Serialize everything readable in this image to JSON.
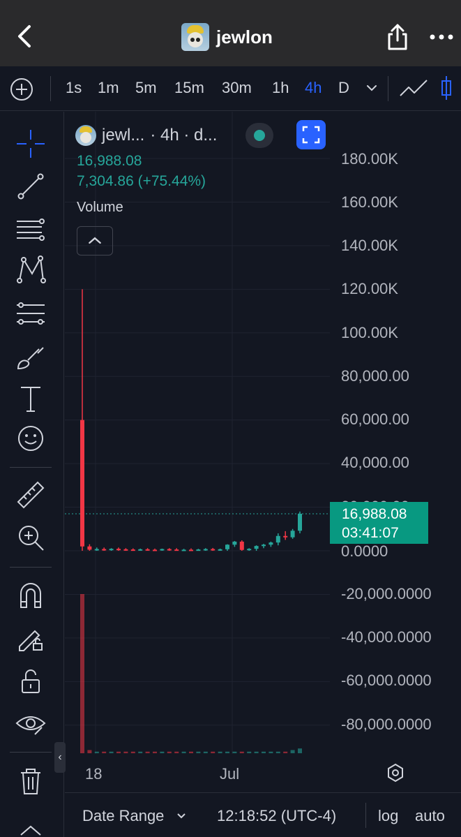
{
  "header": {
    "title": "jewlon",
    "back_icon": "chevron-left-icon",
    "share_icon": "share-icon",
    "more_icon": "more-horizontal-icon"
  },
  "toolbar": {
    "timeframes": [
      "1s",
      "1m",
      "5m",
      "15m",
      "30m",
      "1h",
      "4h",
      "D"
    ],
    "active_timeframe": "4h"
  },
  "legend": {
    "symbol": "jewl...",
    "interval_text": "· 4h · d...",
    "last_price": "16,988.08",
    "change": "7,304.86 (+75.44%)",
    "volume_label": "Volume"
  },
  "price_scale": {
    "labels": [
      "180.00K",
      "160.00K",
      "140.00K",
      "120.00K",
      "100.00K",
      "80,000.00",
      "60,000.00",
      "40,000.00",
      "20,000.00",
      "0.0000",
      "-20,000.0000",
      "-40,000.0000",
      "-60,000.0000",
      "-80,000.0000"
    ],
    "current_price": "16,988.08",
    "countdown": "03:41:07"
  },
  "time_scale": {
    "labels": [
      "18",
      "Jul"
    ]
  },
  "bottom": {
    "date_range": "Date Range",
    "clock": "12:18:52 (UTC-4)",
    "log": "log",
    "auto": "auto"
  },
  "colors": {
    "up": "#26a69a",
    "down": "#f23645",
    "accent": "#2962ff",
    "background": "#131722"
  },
  "chart_data": {
    "type": "candlestick",
    "xlabels": [
      "18",
      "Jul"
    ],
    "ylim": [
      -80000,
      180000
    ],
    "last_price": 16988.08,
    "note_series": [
      {
        "name": "price",
        "values": [
          {
            "o": 60000,
            "h": 120000,
            "l": 0,
            "c": 2000
          },
          {
            "o": 2000,
            "h": 3000,
            "l": 0,
            "c": 500
          },
          {
            "o": 500,
            "h": 1500,
            "l": 0,
            "c": 800
          },
          {
            "o": 800,
            "h": 1500,
            "l": 0,
            "c": 400
          },
          {
            "o": 400,
            "h": 1200,
            "l": 0,
            "c": 900
          },
          {
            "o": 900,
            "h": 1500,
            "l": 0,
            "c": 700
          },
          {
            "o": 700,
            "h": 1200,
            "l": 0,
            "c": 600
          },
          {
            "o": 600,
            "h": 1100,
            "l": 0,
            "c": 300
          },
          {
            "o": 300,
            "h": 1000,
            "l": 0,
            "c": 700
          },
          {
            "o": 700,
            "h": 1200,
            "l": 0,
            "c": 500
          },
          {
            "o": 500,
            "h": 1000,
            "l": 0,
            "c": 400
          },
          {
            "o": 400,
            "h": 1000,
            "l": 0,
            "c": 800
          },
          {
            "o": 800,
            "h": 1200,
            "l": 0,
            "c": 600
          },
          {
            "o": 600,
            "h": 1200,
            "l": 0,
            "c": 300
          },
          {
            "o": 300,
            "h": 900,
            "l": 0,
            "c": 500
          },
          {
            "o": 500,
            "h": 1100,
            "l": 0,
            "c": 400
          },
          {
            "o": 400,
            "h": 900,
            "l": 0,
            "c": 600
          },
          {
            "o": 600,
            "h": 1200,
            "l": 0,
            "c": 800
          },
          {
            "o": 800,
            "h": 1300,
            "l": 0,
            "c": 500
          },
          {
            "o": 500,
            "h": 1000,
            "l": 0,
            "c": 700
          },
          {
            "o": 700,
            "h": 3000,
            "l": 0,
            "c": 2800
          },
          {
            "o": 2800,
            "h": 4500,
            "l": 1800,
            "c": 4200
          },
          {
            "o": 4200,
            "h": 4800,
            "l": 0,
            "c": 400
          },
          {
            "o": 400,
            "h": 1200,
            "l": 0,
            "c": 900
          },
          {
            "o": 900,
            "h": 2500,
            "l": 0,
            "c": 2200
          },
          {
            "o": 2200,
            "h": 3200,
            "l": 1200,
            "c": 2800
          },
          {
            "o": 2800,
            "h": 4200,
            "l": 1800,
            "c": 3800
          },
          {
            "o": 3800,
            "h": 8000,
            "l": 2500,
            "c": 6800
          },
          {
            "o": 6800,
            "h": 9000,
            "l": 5000,
            "c": 6200
          },
          {
            "o": 6200,
            "h": 10000,
            "l": 5500,
            "c": 9200
          },
          {
            "o": 9200,
            "h": 18000,
            "l": 8000,
            "c": 16988.08
          }
        ]
      },
      {
        "name": "volume",
        "values": [
          100,
          2,
          1,
          1,
          1,
          1,
          1,
          1,
          1,
          1,
          1,
          1,
          1,
          1,
          1,
          1,
          1,
          1,
          1,
          1,
          1,
          1,
          1,
          1,
          1,
          1,
          1,
          1,
          1,
          2,
          3
        ]
      }
    ]
  }
}
